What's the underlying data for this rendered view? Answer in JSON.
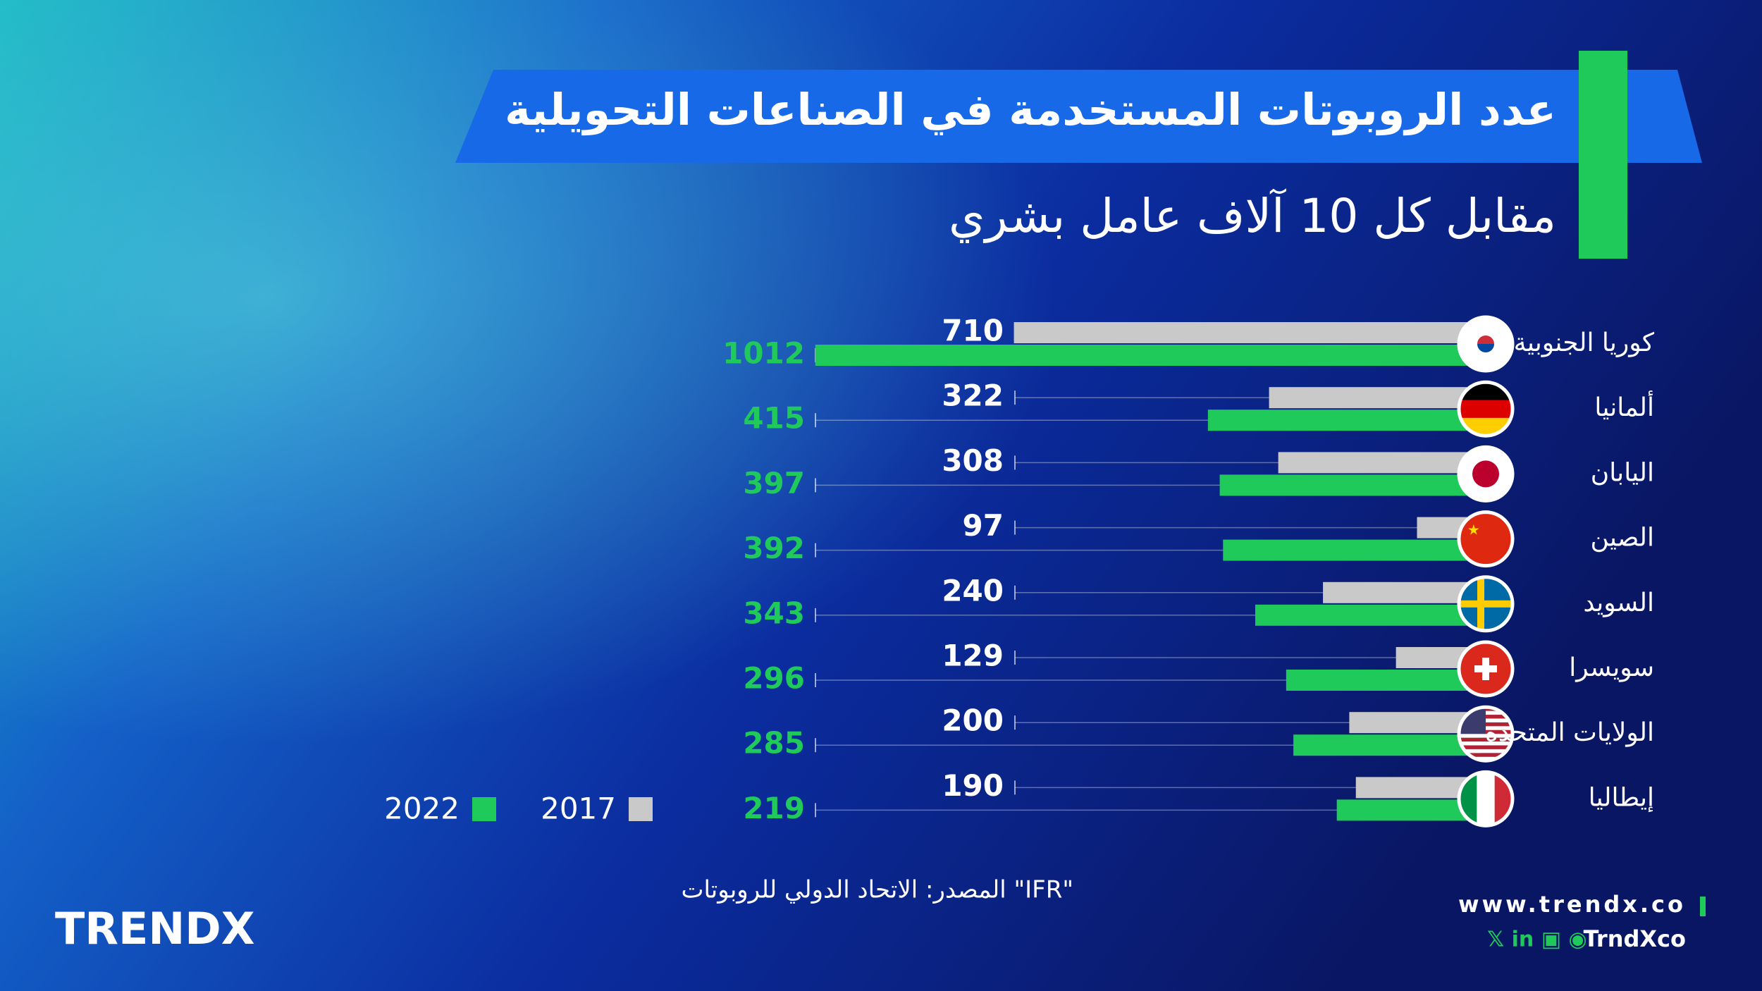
{
  "chart_data": {
    "type": "bar",
    "orientation": "horizontal",
    "title": "عدد الروبوتات المستخدمة في الصناعات التحويلية",
    "subtitle": "مقابل كل 10 آلاف عامل بشري",
    "categories": [
      "كوريا الجنوبية",
      "ألمانيا",
      "اليابان",
      "الصين",
      "السويد",
      "سويسرا",
      "الولايات المتحدة",
      "إيطاليا"
    ],
    "series": [
      {
        "name": "2017",
        "color": "#c9c9c9",
        "values": [
          710,
          322,
          308,
          97,
          240,
          129,
          200,
          190
        ]
      },
      {
        "name": "2022",
        "color": "#1fc95a",
        "values": [
          1012,
          415,
          397,
          392,
          343,
          296,
          285,
          219
        ]
      }
    ],
    "source": "المصدر: الاتحاد الدولي للروبوتات \"IFR\"",
    "brand": "TRENDX",
    "website": "www.trendx.co",
    "handle": "TrndXco"
  }
}
